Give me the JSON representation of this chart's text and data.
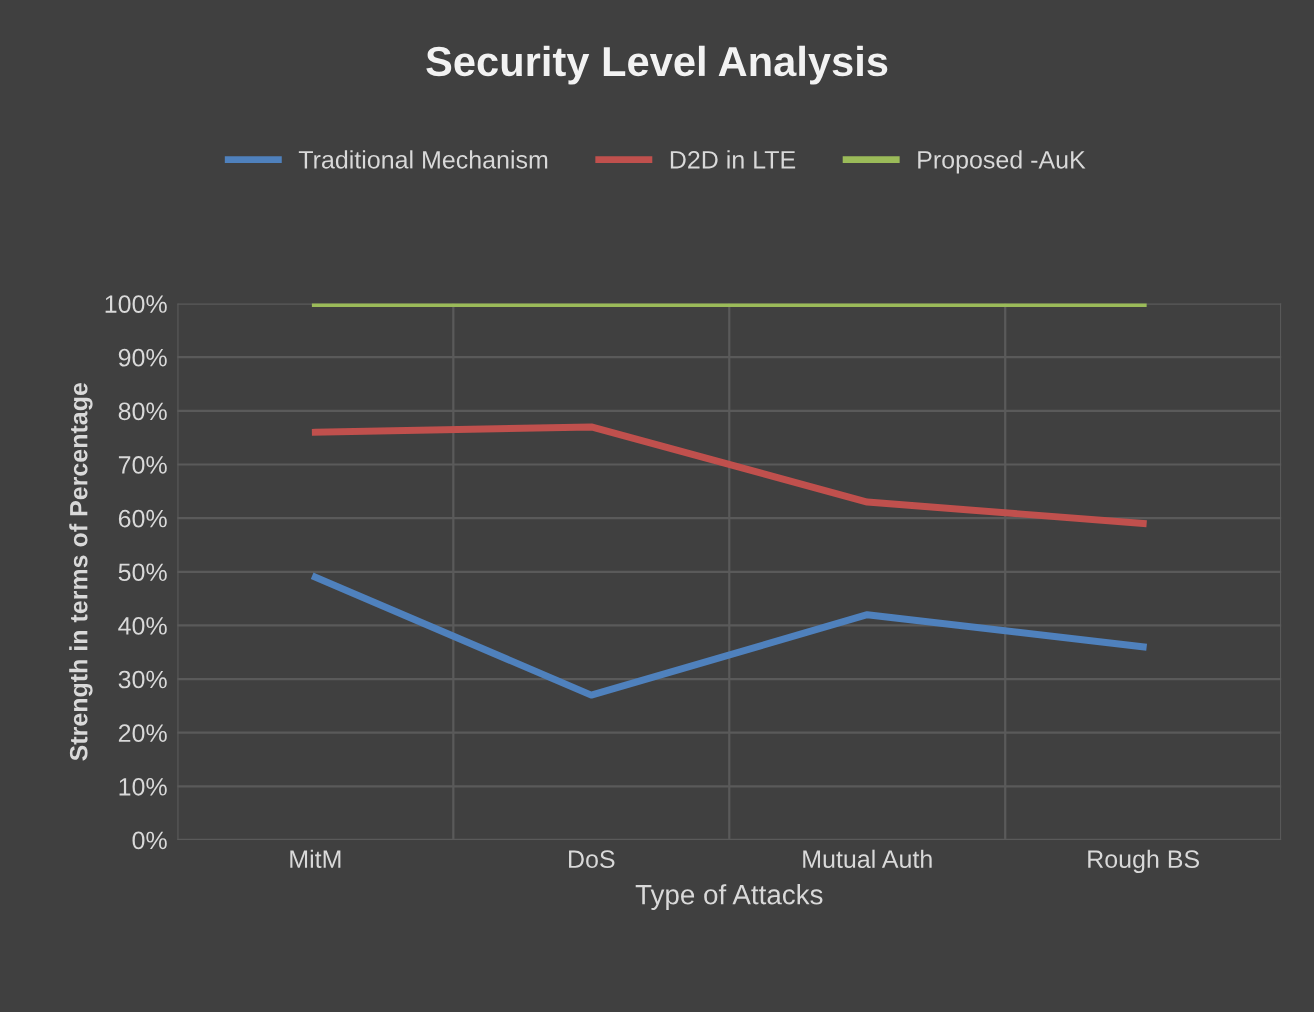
{
  "chart_data": {
    "type": "line",
    "title": "Security Level Analysis",
    "xlabel": "Type of Attacks",
    "ylabel": "Strength in terms of Percentage",
    "categories": [
      "MitM",
      "DoS",
      "Mutual Auth",
      "Rough BS"
    ],
    "series": [
      {
        "name": "Traditional Mechanism",
        "color": "#4f81bd",
        "values": [
          49,
          27,
          42,
          36
        ]
      },
      {
        "name": "D2D in LTE",
        "color": "#c0504d",
        "values": [
          76,
          77,
          63,
          59
        ]
      },
      {
        "name": "Proposed -AuK",
        "color": "#9bbb59",
        "values": [
          100,
          100,
          100,
          100
        ]
      }
    ],
    "ylim": [
      0,
      100
    ],
    "yticks": [
      {
        "value": 0,
        "label": "0%"
      },
      {
        "value": 10,
        "label": "10%"
      },
      {
        "value": 20,
        "label": "20%"
      },
      {
        "value": 30,
        "label": "30%"
      },
      {
        "value": 40,
        "label": "40%"
      },
      {
        "value": 50,
        "label": "50%"
      },
      {
        "value": 60,
        "label": "60%"
      },
      {
        "value": 70,
        "label": "70%"
      },
      {
        "value": 80,
        "label": "80%"
      },
      {
        "value": 90,
        "label": "90%"
      },
      {
        "value": 100,
        "label": "100%"
      }
    ],
    "grid": true,
    "legend": "top",
    "marker": "none",
    "line_style": "solid"
  }
}
